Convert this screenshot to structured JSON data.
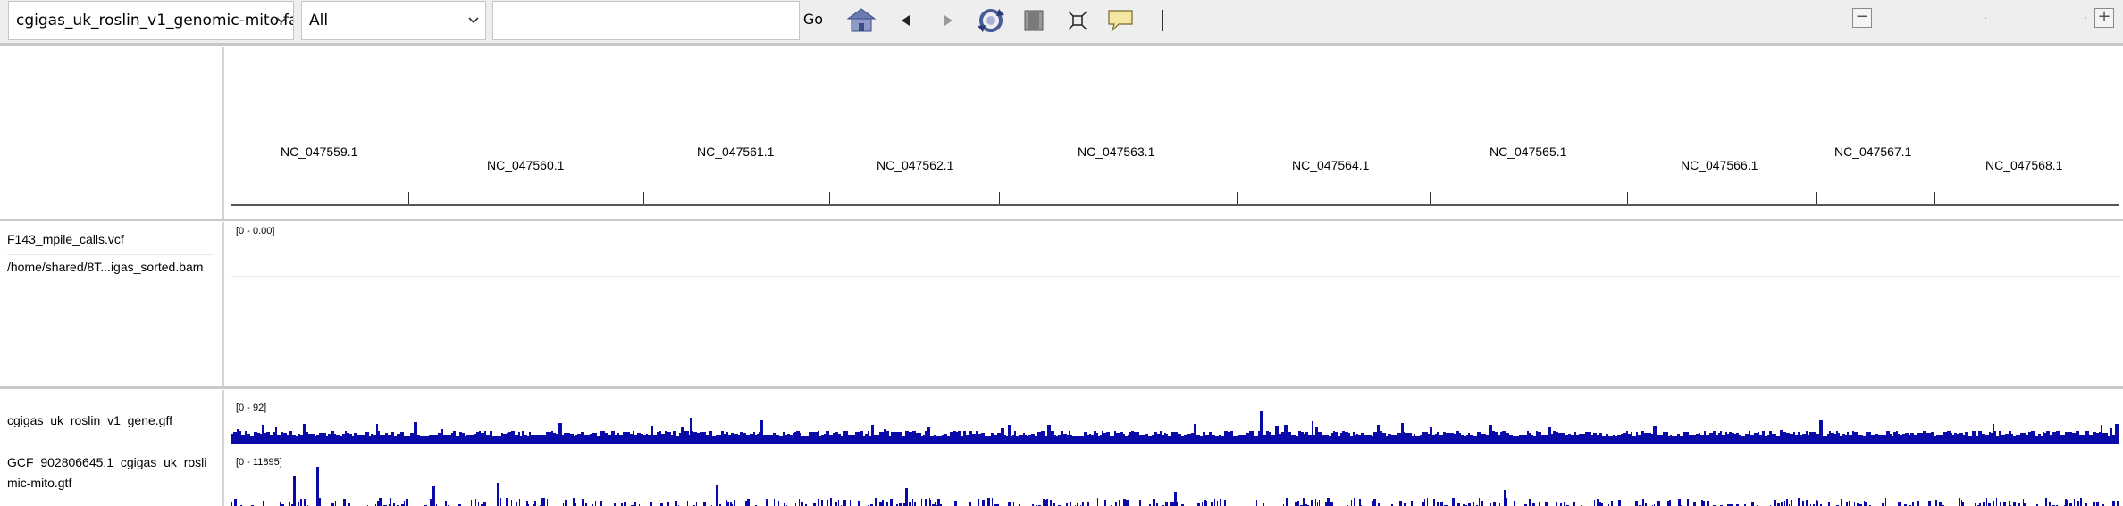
{
  "toolbar": {
    "genome": "cgigas_uk_roslin_v1_genomic-mito.fa",
    "chromosome": "All",
    "locus_value": "",
    "go_label": "Go",
    "icons": [
      "home-icon",
      "back-arrow-icon",
      "forward-arrow-icon",
      "refresh-icon",
      "region-of-interest-icon",
      "resize-to-window-icon",
      "popup-info-icon",
      "ruler-bar-icon"
    ],
    "zoom_minus": "−",
    "zoom_plus": "+"
  },
  "ruler": {
    "chromosomes": [
      "NC_047559.1",
      "NC_047560.1",
      "NC_047561.1",
      "NC_047562.1",
      "NC_047563.1",
      "NC_047564.1",
      "NC_047565.1",
      "NC_047566.1",
      "NC_047567.1",
      "NC_047568.1"
    ]
  },
  "data_panel": {
    "tracks": [
      {
        "name": "F143_mpile_calls.vcf",
        "range": "[0 - 0.00]"
      },
      {
        "name": "/home/shared/8T...igas_sorted.bam"
      }
    ]
  },
  "feature_panel": {
    "tracks": [
      {
        "name": "cgigas_uk_roslin_v1_gene.gff",
        "range": "[0 - 92]"
      },
      {
        "name_line1": "GCF_902806645.1_cgigas_uk_rosli",
        "name_line2": "mic-mito.gtf",
        "range": "[0 - 11895]"
      }
    ]
  },
  "colors": {
    "coverage_bar": "#0a0aa9",
    "toolbar_bg": "#eeeeee",
    "divider": "#c9c9c9"
  }
}
